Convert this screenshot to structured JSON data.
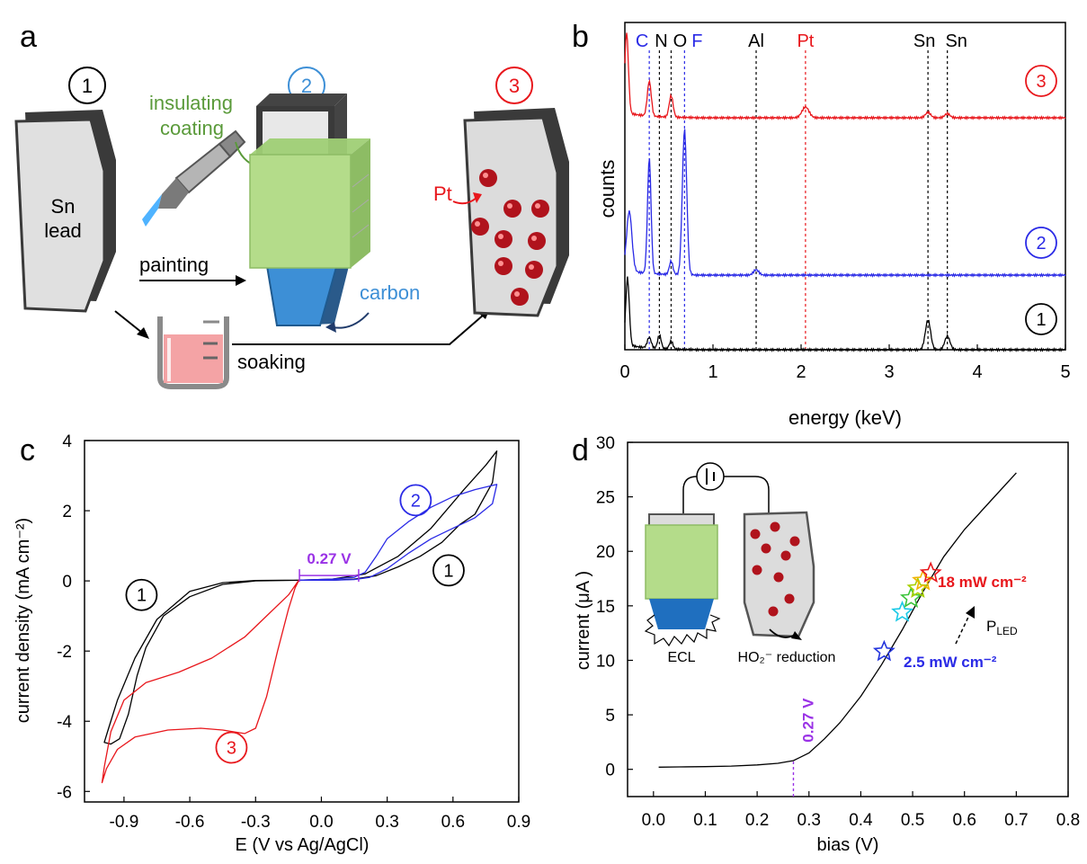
{
  "panels": {
    "a": {
      "letter": "a",
      "step1": "1",
      "step2": "2",
      "step3": "3",
      "sn_line1": "Sn",
      "sn_line2": "lead",
      "insulating_line1": "insulating",
      "insulating_line2": "coating",
      "pt_label": "Pt",
      "painting": "painting",
      "carbon": "carbon",
      "soaking": "soaking"
    },
    "b": {
      "letter": "b"
    },
    "c": {
      "letter": "c"
    },
    "d": {
      "letter": "d"
    }
  },
  "colors": {
    "black": "#000000",
    "blue": "#2a2ae6",
    "red": "#e8171c",
    "purple": "#9a32e6",
    "green_coating": "#b4dc8a",
    "carbon_blue": "#3d8fd6",
    "pt_red": "#b0131c",
    "gray_body": "#e0e0e0",
    "dark_edge": "#3a3a3a",
    "soak_liquid": "#f4a3a5"
  },
  "chart_data": [
    {
      "id": "b",
      "type": "line",
      "xlabel": "energy (keV)",
      "ylabel": "counts",
      "xlim": [
        0,
        5
      ],
      "xticks": [
        0,
        1,
        2,
        3,
        4,
        5
      ],
      "yticks": false,
      "peak_labels": [
        {
          "text": "C",
          "energy": 0.277,
          "color": "blue"
        },
        {
          "text": "N",
          "energy": 0.392,
          "color": "black"
        },
        {
          "text": "O",
          "energy": 0.525,
          "color": "black"
        },
        {
          "text": "F",
          "energy": 0.677,
          "color": "blue"
        },
        {
          "text": "Al",
          "energy": 1.49,
          "color": "black"
        },
        {
          "text": "Pt",
          "energy": 2.05,
          "color": "red"
        },
        {
          "text": "Sn",
          "energy": 3.44,
          "color": "black"
        },
        {
          "text": "Sn",
          "energy": 3.66,
          "color": "black"
        }
      ],
      "series": [
        {
          "name": "3",
          "color": "red",
          "baseline": 0.78,
          "peaks": [
            [
              0.02,
              0.3,
              0.02
            ],
            [
              0.277,
              0.13,
              0.022
            ],
            [
              0.525,
              0.08,
              0.022
            ],
            [
              2.05,
              0.04,
              0.04
            ],
            [
              3.44,
              0.02,
              0.03
            ],
            [
              3.66,
              0.015,
              0.03
            ]
          ]
        },
        {
          "name": "2",
          "color": "blue",
          "baseline": 0.24,
          "peaks": [
            [
              0.05,
              0.22,
              0.03
            ],
            [
              0.277,
              0.43,
              0.02
            ],
            [
              0.525,
              0.05,
              0.02
            ],
            [
              0.677,
              0.54,
              0.025
            ],
            [
              1.49,
              0.02,
              0.03
            ]
          ]
        },
        {
          "name": "1",
          "color": "black",
          "baseline": 0.0,
          "peaks": [
            [
              0.03,
              0.25,
              0.02
            ],
            [
              0.277,
              0.04,
              0.022
            ],
            [
              0.392,
              0.05,
              0.02
            ],
            [
              0.525,
              0.03,
              0.02
            ],
            [
              3.44,
              0.11,
              0.03
            ],
            [
              3.66,
              0.05,
              0.03
            ]
          ]
        }
      ]
    },
    {
      "id": "c",
      "type": "line",
      "xlabel": "E (V vs Ag/AgCl)",
      "ylabel": "current density (mA cm⁻²)",
      "xlim": [
        -1.08,
        0.9
      ],
      "ylim": [
        -6.3,
        4
      ],
      "xticks": [
        -0.9,
        -0.6,
        -0.3,
        0.0,
        0.3,
        0.6,
        0.9
      ],
      "xtick_labels": [
        "-0.9",
        "-0.6",
        "-0.3",
        "0.0",
        "0.3",
        "0.6",
        "0.9"
      ],
      "yticks": [
        -6,
        -4,
        -2,
        0,
        2,
        4
      ],
      "annotations": [
        {
          "text": "1",
          "kind": "circle",
          "color": "black",
          "x": -0.82,
          "y": -0.4
        },
        {
          "text": "1",
          "kind": "circle",
          "color": "black",
          "x": 0.58,
          "y": 0.3
        },
        {
          "text": "2",
          "kind": "circle",
          "color": "blue",
          "x": 0.43,
          "y": 2.3
        },
        {
          "text": "3",
          "kind": "circle",
          "color": "red",
          "x": -0.41,
          "y": -4.75
        },
        {
          "text": "0.27 V",
          "kind": "bracket",
          "color": "purple",
          "x0": -0.1,
          "x1": 0.17,
          "y": -0.05
        }
      ],
      "series": [
        {
          "name": "1",
          "color": "black",
          "points": [
            [
              -0.1,
              0.02
            ],
            [
              -0.3,
              0.01
            ],
            [
              -0.45,
              -0.05
            ],
            [
              -0.6,
              -0.3
            ],
            [
              -0.75,
              -1.1
            ],
            [
              -0.85,
              -2.2
            ],
            [
              -0.93,
              -3.4
            ],
            [
              -0.97,
              -4.2
            ],
            [
              -0.99,
              -4.6
            ],
            [
              -0.96,
              -4.65
            ],
            [
              -0.92,
              -4.5
            ],
            [
              -0.88,
              -3.8
            ],
            [
              -0.84,
              -2.7
            ],
            [
              -0.8,
              -1.9
            ],
            [
              -0.72,
              -1.0
            ],
            [
              -0.6,
              -0.45
            ],
            [
              -0.45,
              -0.1
            ],
            [
              -0.3,
              0.0
            ],
            [
              -0.1,
              0.02
            ],
            [
              0.05,
              0.05
            ],
            [
              0.2,
              0.2
            ],
            [
              0.35,
              0.7
            ],
            [
              0.5,
              1.5
            ],
            [
              0.65,
              2.6
            ],
            [
              0.75,
              3.3
            ],
            [
              0.8,
              3.7
            ],
            [
              0.78,
              2.8
            ],
            [
              0.7,
              1.9
            ],
            [
              0.63,
              1.6
            ],
            [
              0.55,
              1.1
            ],
            [
              0.45,
              0.7
            ],
            [
              0.35,
              0.4
            ],
            [
              0.25,
              0.15
            ],
            [
              0.15,
              0.05
            ],
            [
              0.05,
              0.02
            ],
            [
              -0.1,
              0.02
            ]
          ]
        },
        {
          "name": "2",
          "color": "blue",
          "points": [
            [
              -0.1,
              0.02
            ],
            [
              0.05,
              0.05
            ],
            [
              0.15,
              0.1
            ],
            [
              0.2,
              0.25
            ],
            [
              0.25,
              0.7
            ],
            [
              0.3,
              1.2
            ],
            [
              0.4,
              1.7
            ],
            [
              0.5,
              2.1
            ],
            [
              0.6,
              2.4
            ],
            [
              0.7,
              2.6
            ],
            [
              0.8,
              2.75
            ],
            [
              0.78,
              2.2
            ],
            [
              0.7,
              1.8
            ],
            [
              0.6,
              1.5
            ],
            [
              0.5,
              1.2
            ],
            [
              0.4,
              0.8
            ],
            [
              0.3,
              0.35
            ],
            [
              0.22,
              0.1
            ],
            [
              0.15,
              0.04
            ],
            [
              0.05,
              0.02
            ],
            [
              -0.1,
              0.02
            ]
          ]
        },
        {
          "name": "3",
          "color": "red",
          "points": [
            [
              -0.1,
              0.05
            ],
            [
              -0.12,
              -0.2
            ],
            [
              -0.15,
              -0.8
            ],
            [
              -0.2,
              -2.0
            ],
            [
              -0.25,
              -3.3
            ],
            [
              -0.3,
              -4.2
            ],
            [
              -0.35,
              -4.35
            ],
            [
              -0.45,
              -4.25
            ],
            [
              -0.55,
              -4.2
            ],
            [
              -0.7,
              -4.25
            ],
            [
              -0.85,
              -4.45
            ],
            [
              -0.93,
              -4.8
            ],
            [
              -0.98,
              -5.35
            ],
            [
              -1.0,
              -5.75
            ],
            [
              -0.99,
              -5.3
            ],
            [
              -0.96,
              -4.3
            ],
            [
              -0.9,
              -3.4
            ],
            [
              -0.8,
              -2.9
            ],
            [
              -0.65,
              -2.6
            ],
            [
              -0.5,
              -2.2
            ],
            [
              -0.35,
              -1.6
            ],
            [
              -0.25,
              -1.0
            ],
            [
              -0.15,
              -0.4
            ],
            [
              -0.1,
              0.05
            ]
          ]
        }
      ]
    },
    {
      "id": "d",
      "type": "line",
      "xlabel": "bias (V)",
      "ylabel": "current (μA )",
      "xlim": [
        -0.05,
        0.8
      ],
      "ylim": [
        -2.5,
        30
      ],
      "xticks": [
        0.0,
        0.1,
        0.2,
        0.3,
        0.4,
        0.5,
        0.6,
        0.7,
        0.8
      ],
      "xtick_labels": [
        "0.0",
        "0.1",
        "0.2",
        "0.3",
        "0.4",
        "0.5",
        "0.6",
        "0.7",
        "0.8"
      ],
      "yticks": [
        0,
        5,
        10,
        15,
        20,
        25,
        30
      ],
      "vline": {
        "x": 0.27,
        "label": "0.27 V",
        "color": "purple"
      },
      "series": [
        {
          "name": "",
          "color": "black",
          "points": [
            [
              0.01,
              0.2
            ],
            [
              0.05,
              0.22
            ],
            [
              0.1,
              0.25
            ],
            [
              0.15,
              0.3
            ],
            [
              0.2,
              0.4
            ],
            [
              0.24,
              0.55
            ],
            [
              0.27,
              0.8
            ],
            [
              0.3,
              1.5
            ],
            [
              0.33,
              2.8
            ],
            [
              0.36,
              4.3
            ],
            [
              0.4,
              6.7
            ],
            [
              0.44,
              9.6
            ],
            [
              0.48,
              12.8
            ],
            [
              0.52,
              16.3
            ],
            [
              0.56,
              19.5
            ],
            [
              0.6,
              22.0
            ],
            [
              0.65,
              24.6
            ],
            [
              0.7,
              27.2
            ]
          ]
        }
      ],
      "stars": [
        {
          "x": 0.445,
          "y": 10.8,
          "color": "#2233dd"
        },
        {
          "x": 0.48,
          "y": 14.4,
          "color": "#19c9e6"
        },
        {
          "x": 0.497,
          "y": 15.7,
          "color": "#3cc43c"
        },
        {
          "x": 0.51,
          "y": 16.6,
          "color": "#a7d000"
        },
        {
          "x": 0.52,
          "y": 17.3,
          "color": "#f0b400"
        },
        {
          "x": 0.535,
          "y": 18.0,
          "color": "#e8171c"
        }
      ],
      "labels": {
        "high": "18 mW cm⁻²",
        "low": "2.5 mW cm⁻²",
        "pled_main": "P",
        "pled_sub": "LED",
        "ecl": "ECL",
        "reduction": "HO₂⁻ reduction"
      }
    }
  ]
}
